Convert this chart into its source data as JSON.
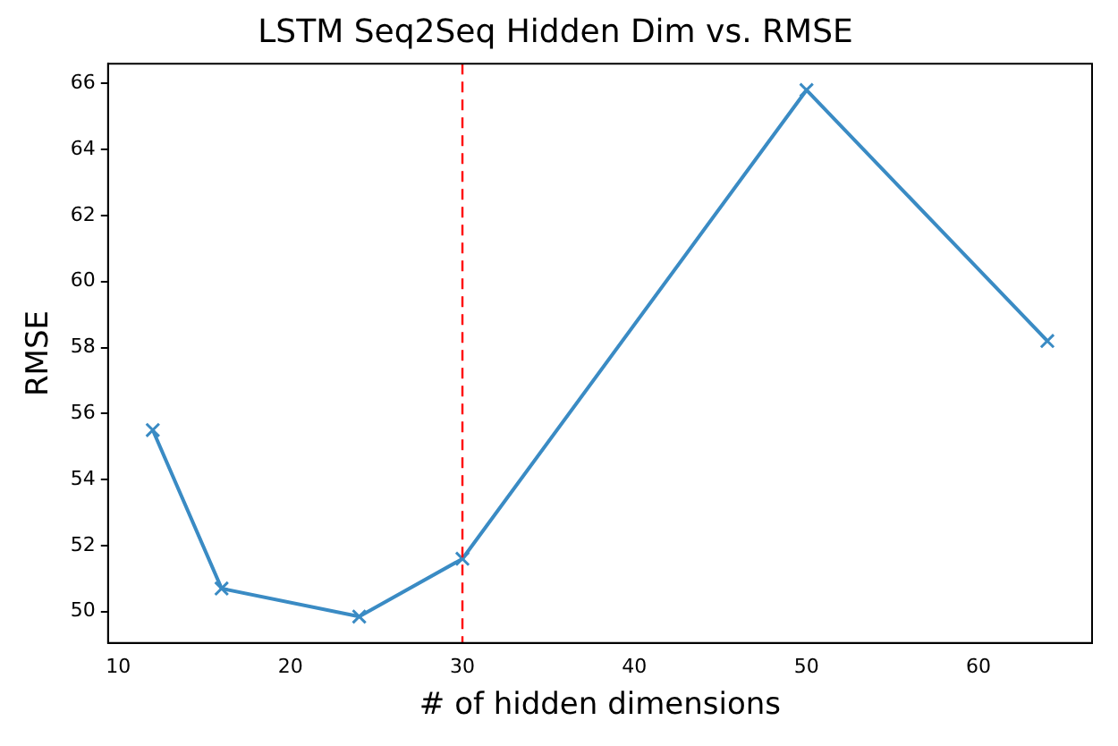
{
  "chart_data": {
    "type": "line",
    "title": "LSTM Seq2Seq Hidden Dim vs. RMSE",
    "xlabel": "# of hidden dimensions",
    "ylabel": "RMSE",
    "x": [
      12,
      16,
      24,
      30,
      50,
      64
    ],
    "series": [
      {
        "color": "#3a8bc4",
        "values": [
          55.5,
          50.7,
          49.85,
          51.6,
          65.8,
          58.2
        ]
      }
    ],
    "xlim": [
      9.4,
      66.6
    ],
    "xticks": [
      10,
      20,
      30,
      40,
      50,
      60
    ],
    "ylim": [
      49.05,
      66.6
    ],
    "yticks": [
      50,
      52,
      54,
      56,
      58,
      60,
      62,
      64,
      66
    ],
    "ref_lines": [
      {
        "axis": "x",
        "value": 30,
        "color": "#ff0000",
        "line_style": "dashed"
      }
    ],
    "marker": "cross",
    "line_style": "solid",
    "grid": false,
    "legend": false
  }
}
